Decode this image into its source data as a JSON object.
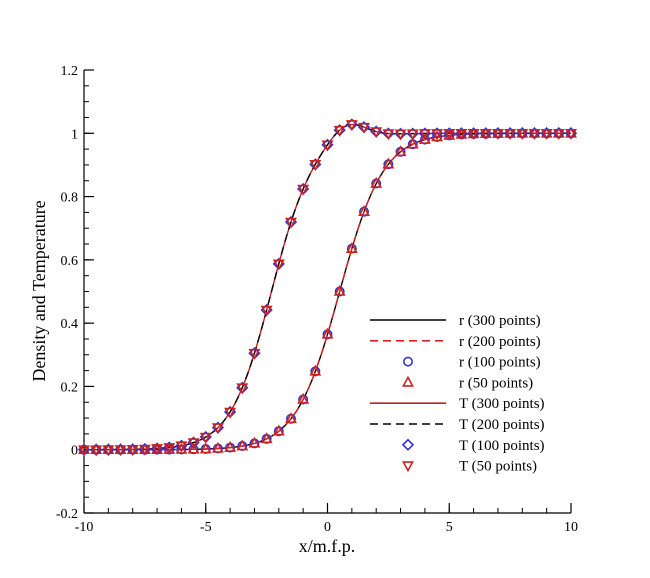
{
  "chart_data": {
    "type": "line",
    "title": "",
    "xlabel": "x/m.f.p.",
    "ylabel": "Density and Temperature",
    "xlim": [
      -10,
      10
    ],
    "ylim": [
      -0.2,
      1.2
    ],
    "x_major_ticks": [
      -10,
      -5,
      0,
      5,
      10
    ],
    "x_tick_labels": [
      "-10",
      "-5",
      "0",
      "5",
      "10"
    ],
    "y_major_ticks": [
      -0.2,
      0,
      0.2,
      0.4,
      0.6,
      0.8,
      1,
      1.2
    ],
    "y_tick_labels": [
      "-0.2",
      "0",
      "0.2",
      "0.4",
      "0.6",
      "0.8",
      "1",
      "1.2"
    ],
    "x_minor_step": 1,
    "y_minor_step": 0.05,
    "grid": false,
    "legend_position": "bottom-right",
    "curves": {
      "r": {
        "center": 0.5,
        "scale": 0.9,
        "overshoot_amp": 0,
        "overshoot_center": 0,
        "overshoot_width": 1
      },
      "T": {
        "center": -2.3,
        "scale": 0.85,
        "overshoot_amp": 0.05,
        "overshoot_center": 0.8,
        "overshoot_width": 1.0
      }
    },
    "series": [
      {
        "name": "r (300 points)",
        "curve": "r",
        "style": "line",
        "color": "#000000",
        "dash": "none",
        "points": 300
      },
      {
        "name": "r (200 points)",
        "curve": "r",
        "style": "line",
        "color": "#e02020",
        "dash": "8,5",
        "points": 200
      },
      {
        "name": "r (100 points)",
        "curve": "r",
        "style": "marker",
        "marker": "circle",
        "color": "#3333cc",
        "points": 100,
        "marker_spacing": 0.5
      },
      {
        "name": "r (50 points)",
        "curve": "r",
        "style": "marker",
        "marker": "triangle-up",
        "color": "#cc2222",
        "points": 50,
        "marker_spacing": 0.5
      },
      {
        "name": "T (300 points)",
        "curve": "T",
        "style": "line",
        "color": "#c02020",
        "dash": "none",
        "points": 300
      },
      {
        "name": "T (200 points)",
        "curve": "T",
        "style": "line",
        "color": "#000000",
        "dash": "8,5",
        "points": 200
      },
      {
        "name": "T (100 points)",
        "curve": "T",
        "style": "marker",
        "marker": "diamond",
        "color": "#3333cc",
        "points": 100,
        "marker_spacing": 0.5
      },
      {
        "name": "T (50 points)",
        "curve": "T",
        "style": "marker",
        "marker": "triangle-down",
        "color": "#cc2222",
        "points": 50,
        "marker_spacing": 0.5
      }
    ]
  }
}
